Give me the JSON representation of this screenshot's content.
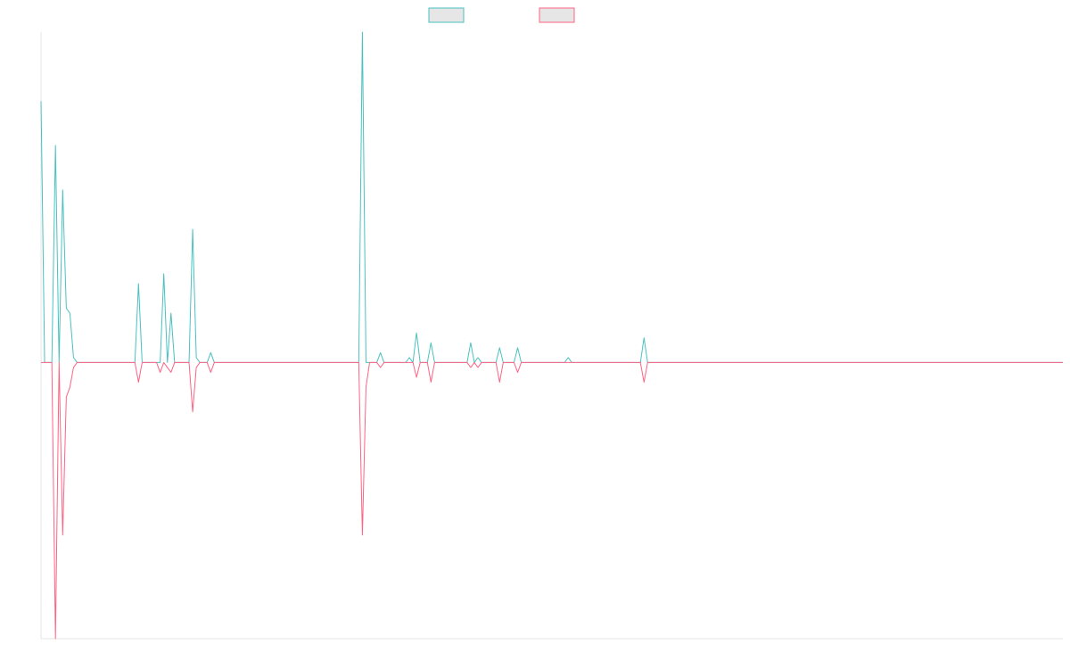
{
  "chart_data": {
    "type": "line",
    "title": "",
    "xlabel": "",
    "ylabel": "",
    "grid": false,
    "legend_position": "top-center",
    "xlim": [
      0,
      140
    ],
    "ylim": [
      -0.56,
      0.67
    ],
    "baseline": 0,
    "series": [
      {
        "color": "#4bc0c0",
        "legend_fill": "#e6e6e6",
        "values": [
          0.53,
          0.0,
          0.0,
          0.0,
          0.44,
          0.0,
          0.35,
          0.11,
          0.1,
          0.01,
          0.0,
          0.0,
          0.0,
          0.0,
          0.0,
          0.0,
          0.0,
          0.0,
          0.0,
          0.0,
          0.0,
          0.0,
          0.0,
          0.0,
          0.0,
          0.0,
          0.0,
          0.16,
          0.0,
          0.0,
          0.0,
          0.0,
          0.0,
          0.0,
          0.18,
          0.0,
          0.1,
          0.0,
          0.0,
          0.0,
          0.0,
          0.0,
          0.27,
          0.01,
          0.0,
          0.0,
          0.0,
          0.02,
          0.0,
          0.0,
          0.0,
          0.0,
          0.0,
          0.0,
          0.0,
          0.0,
          0.0,
          0.0,
          0.0,
          0.0,
          0.0,
          0.0,
          0.0,
          0.0,
          0.0,
          0.0,
          0.0,
          0.0,
          0.0,
          0.0,
          0.0,
          0.0,
          0.0,
          0.0,
          0.0,
          0.0,
          0.0,
          0.0,
          0.0,
          0.0,
          0.0,
          0.0,
          0.0,
          0.0,
          0.0,
          0.0,
          0.0,
          0.0,
          0.0,
          0.67,
          0.0,
          0.0,
          0.0,
          0.0,
          0.02,
          0.0,
          0.0,
          0.0,
          0.0,
          0.0,
          0.0,
          0.0,
          0.01,
          0.0,
          0.06,
          0.0,
          0.0,
          0.0,
          0.04,
          0.0,
          0.0,
          0.0,
          0.0,
          0.0,
          0.0,
          0.0,
          0.0,
          0.0,
          0.0,
          0.04,
          0.0,
          0.01,
          0.0,
          0.0,
          0.0,
          0.0,
          0.0,
          0.03,
          0.0,
          0.0,
          0.0,
          0.0,
          0.03,
          0.0,
          0.0,
          0.0,
          0.0,
          0.0,
          0.0,
          0.0,
          0.0,
          0.0,
          0.0,
          0.0,
          0.0,
          0.0,
          0.01,
          0.0,
          0.0,
          0.0,
          0.0,
          0.0,
          0.0,
          0.0,
          0.0,
          0.0,
          0.0,
          0.0,
          0.0,
          0.0,
          0.0,
          0.0,
          0.0,
          0.0,
          0.0,
          0.0,
          0.0,
          0.05,
          0.0,
          0.0,
          0.0,
          0.0,
          0.0,
          0.0,
          0.0,
          0.0,
          0.0,
          0.0,
          0.0,
          0.0,
          0.0,
          0.0,
          0.0,
          0.0,
          0.0,
          0.0,
          0.0,
          0.0,
          0.0,
          0.0,
          0.0,
          0.0,
          0.0,
          0.0,
          0.0,
          0.0,
          0.0,
          0.0,
          0.0,
          0.0,
          0.0,
          0.0,
          0.0,
          0.0,
          0.0,
          0.0,
          0.0,
          0.0,
          0.0,
          0.0,
          0.0,
          0.0,
          0.0,
          0.0,
          0.0,
          0.0,
          0.0,
          0.0,
          0.0,
          0.0,
          0.0,
          0.0,
          0.0,
          0.0,
          0.0,
          0.0,
          0.0,
          0.0,
          0.0,
          0.0,
          0.0,
          0.0,
          0.0,
          0.0,
          0.0,
          0.0,
          0.0,
          0.0,
          0.0,
          0.0,
          0.0,
          0.0,
          0.0,
          0.0,
          0.0,
          0.0,
          0.0,
          0.0,
          0.0,
          0.0,
          0.0,
          0.0,
          0.0,
          0.0,
          0.0,
          0.0,
          0.0,
          0.0,
          0.0,
          0.0,
          0.0,
          0.0,
          0.0,
          0.0,
          0.0,
          0.0,
          0.0,
          0.0,
          0.0,
          0.0,
          0.0,
          0.0,
          0.0,
          0.0,
          0.0,
          0.0,
          0.0,
          0.0,
          0.0,
          0.0,
          0.0,
          0.0,
          0.0,
          0.0
        ]
      },
      {
        "color": "#ff6384",
        "legend_fill": "#e6e6e6",
        "values": [
          0.0,
          0.0,
          0.0,
          0.0,
          -0.56,
          0.0,
          -0.35,
          -0.07,
          -0.05,
          -0.01,
          0.0,
          0.0,
          0.0,
          0.0,
          0.0,
          0.0,
          0.0,
          0.0,
          0.0,
          0.0,
          0.0,
          0.0,
          0.0,
          0.0,
          0.0,
          0.0,
          0.0,
          -0.04,
          0.0,
          0.0,
          0.0,
          0.0,
          0.0,
          -0.02,
          0.0,
          -0.01,
          -0.02,
          0.0,
          0.0,
          0.0,
          0.0,
          0.0,
          -0.1,
          -0.01,
          0.0,
          0.0,
          0.0,
          -0.02,
          0.0,
          0.0,
          0.0,
          0.0,
          0.0,
          0.0,
          0.0,
          0.0,
          0.0,
          0.0,
          0.0,
          0.0,
          0.0,
          0.0,
          0.0,
          0.0,
          0.0,
          0.0,
          0.0,
          0.0,
          0.0,
          0.0,
          0.0,
          0.0,
          0.0,
          0.0,
          0.0,
          0.0,
          0.0,
          0.0,
          0.0,
          0.0,
          0.0,
          0.0,
          0.0,
          0.0,
          0.0,
          0.0,
          0.0,
          0.0,
          0.0,
          -0.35,
          -0.05,
          0.0,
          0.0,
          0.0,
          -0.01,
          0.0,
          0.0,
          0.0,
          0.0,
          0.0,
          0.0,
          0.0,
          0.0,
          0.0,
          -0.03,
          0.0,
          0.0,
          0.0,
          -0.04,
          0.0,
          0.0,
          0.0,
          0.0,
          0.0,
          0.0,
          0.0,
          0.0,
          0.0,
          0.0,
          -0.01,
          0.0,
          -0.01,
          0.0,
          0.0,
          0.0,
          0.0,
          0.0,
          -0.04,
          0.0,
          0.0,
          0.0,
          0.0,
          -0.02,
          0.0,
          0.0,
          0.0,
          0.0,
          0.0,
          0.0,
          0.0,
          0.0,
          0.0,
          0.0,
          0.0,
          0.0,
          0.0,
          0.0,
          0.0,
          0.0,
          0.0,
          0.0,
          0.0,
          0.0,
          0.0,
          0.0,
          0.0,
          0.0,
          0.0,
          0.0,
          0.0,
          0.0,
          0.0,
          0.0,
          0.0,
          0.0,
          0.0,
          0.0,
          -0.04,
          0.0,
          0.0,
          0.0,
          0.0,
          0.0,
          0.0,
          0.0,
          0.0,
          0.0,
          0.0,
          0.0,
          0.0,
          0.0,
          0.0,
          0.0,
          0.0,
          0.0,
          0.0,
          0.0,
          0.0,
          0.0,
          0.0,
          0.0,
          0.0,
          0.0,
          0.0,
          0.0,
          0.0,
          0.0,
          0.0,
          0.0,
          0.0,
          0.0,
          0.0,
          0.0,
          0.0,
          0.0,
          0.0,
          0.0,
          0.0,
          0.0,
          0.0,
          0.0,
          0.0,
          0.0,
          0.0,
          0.0,
          0.0,
          0.0,
          0.0,
          0.0,
          0.0,
          0.0,
          0.0,
          0.0,
          0.0,
          0.0,
          0.0,
          0.0,
          0.0,
          0.0,
          0.0,
          0.0,
          0.0,
          0.0,
          0.0,
          0.0,
          0.0,
          0.0,
          0.0,
          0.0,
          0.0,
          0.0,
          0.0,
          0.0,
          0.0,
          0.0,
          0.0,
          0.0,
          0.0,
          0.0,
          0.0,
          0.0,
          0.0,
          0.0,
          0.0,
          0.0,
          0.0,
          0.0,
          0.0,
          0.0,
          0.0,
          0.0,
          0.0,
          0.0,
          0.0,
          0.0,
          0.0,
          0.0,
          0.0,
          0.0,
          0.0,
          0.0,
          0.0,
          0.0,
          0.0,
          0.0,
          0.0,
          0.0,
          0.0,
          0.0,
          0.0,
          0.0,
          0.0,
          0.0,
          0.0
        ]
      }
    ]
  }
}
